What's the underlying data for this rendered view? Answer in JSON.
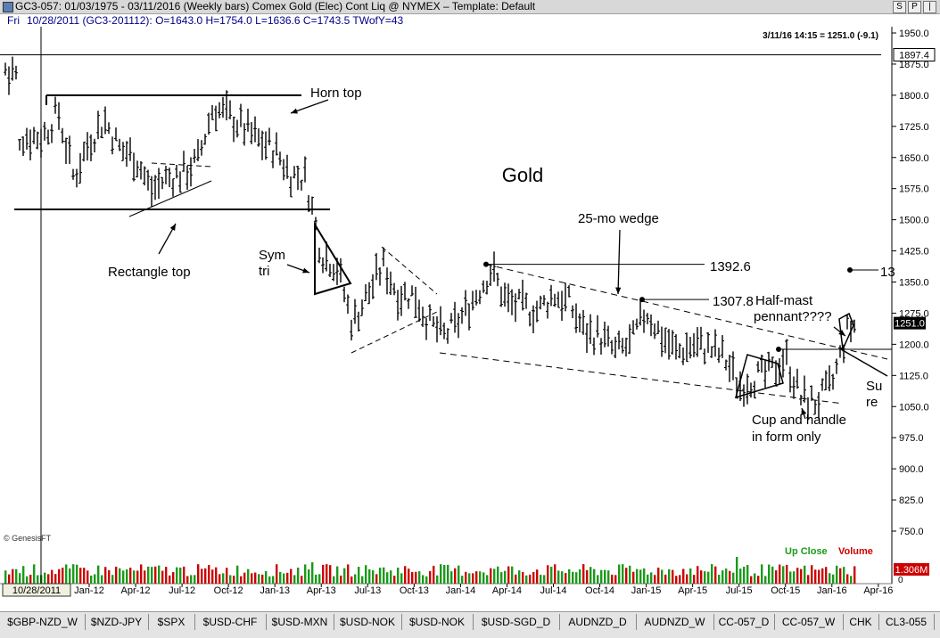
{
  "window": {
    "title": "GC3-057:  01/03/1975 - 03/11/2016  (Weekly bars)   Comex Gold (Elec) Cont Liq @ NYMEX  –  Template: Default",
    "buttons": [
      "S",
      "P",
      "|"
    ]
  },
  "info": {
    "day": "Fri",
    "quote": "10/28/2011 (GC3-201112):  O=1643.0  H=1754.0  L=1636.6  C=1743.5  TWofY=43"
  },
  "header_stamp": "3/11/16 14:15 = 1251.0 (-9.1)",
  "copyright": "© GenesisFT",
  "legend": {
    "up_close": "Up Close",
    "volume": "Volume"
  },
  "crosshair_date": "10/28/2011",
  "price_tags": {
    "cursor": "1897.4",
    "last": "1251.0",
    "volume": "1.306M",
    "volume_zero": "0"
  },
  "colors": {
    "up_close": "#1a9a1a",
    "volume": "#cc0000",
    "bars": "#000000",
    "price_tag_bg": "#cc0000"
  },
  "annotations": {
    "gold": "Gold",
    "horn_top": "Horn top",
    "rectangle_top": "Rectangle top",
    "sym_tri_1": "Sym",
    "sym_tri_2": "tri",
    "wedge": "25-mo wedge",
    "level_1392": "1392.6",
    "level_1307": "1307.8",
    "half_mast_1": "Half-mast",
    "half_mast_2": "pennant????",
    "cup_1": "Cup and handle",
    "cup_2": "in form only",
    "cut_13": "13",
    "cut_su": "Su",
    "cut_re": "re"
  },
  "tabs": [
    "$GBP-NZD_W",
    "$NZD-JPY",
    "$SPX",
    "$USD-CHF",
    "$USD-MXN",
    "$USD-NOK",
    "$USD-NOK",
    "$USD-SGD_D",
    "AUDNZD_D",
    "AUDNZD_W",
    "CC-057_D",
    "CC-057_W",
    "CHK",
    "CL3-055"
  ],
  "chart_data": {
    "type": "bar",
    "title": "Gold",
    "ylabel": "",
    "xlabel": "",
    "ylim": [
      700,
      1960
    ],
    "y_ticks": [
      1950,
      1875,
      1800,
      1725,
      1650,
      1575,
      1500,
      1425,
      1350,
      1275,
      1200,
      1125,
      1050,
      975,
      900,
      825,
      750
    ],
    "x_ticks": [
      "Jan-12",
      "Apr-12",
      "Jul-12",
      "Oct-12",
      "Jan-13",
      "Apr-13",
      "Jul-13",
      "Oct-13",
      "Jan-14",
      "Apr-14",
      "Jul-14",
      "Oct-14",
      "Jan-15",
      "Apr-15",
      "Jul-15",
      "Oct-15",
      "Jan-16",
      "Apr-16"
    ],
    "series_anchors": [
      [
        "2011-10",
        1700
      ],
      [
        "2011-11",
        1760
      ],
      [
        "2011-12",
        1600
      ],
      [
        "2012-01",
        1690
      ],
      [
        "2012-02",
        1740
      ],
      [
        "2012-03",
        1670
      ],
      [
        "2012-04",
        1650
      ],
      [
        "2012-05",
        1570
      ],
      [
        "2012-06",
        1600
      ],
      [
        "2012-07",
        1610
      ],
      [
        "2012-08",
        1640
      ],
      [
        "2012-09",
        1770
      ],
      [
        "2012-10",
        1750
      ],
      [
        "2012-11",
        1720
      ],
      [
        "2012-12",
        1690
      ],
      [
        "2013-01",
        1670
      ],
      [
        "2013-02",
        1610
      ],
      [
        "2013-03",
        1600
      ],
      [
        "2013-04",
        1420
      ],
      [
        "2013-05",
        1390
      ],
      [
        "2013-06",
        1250
      ],
      [
        "2013-07",
        1320
      ],
      [
        "2013-08",
        1390
      ],
      [
        "2013-09",
        1320
      ],
      [
        "2013-10",
        1320
      ],
      [
        "2013-11",
        1250
      ],
      [
        "2013-12",
        1220
      ],
      [
        "2014-01",
        1260
      ],
      [
        "2014-02",
        1320
      ],
      [
        "2014-03",
        1380
      ],
      [
        "2014-04",
        1300
      ],
      [
        "2014-05",
        1290
      ],
      [
        "2014-06",
        1280
      ],
      [
        "2014-07",
        1320
      ],
      [
        "2014-08",
        1300
      ],
      [
        "2014-09",
        1230
      ],
      [
        "2014-10",
        1220
      ],
      [
        "2014-11",
        1180
      ],
      [
        "2014-12",
        1200
      ],
      [
        "2015-01",
        1280
      ],
      [
        "2015-02",
        1220
      ],
      [
        "2015-03",
        1180
      ],
      [
        "2015-04",
        1200
      ],
      [
        "2015-05",
        1190
      ],
      [
        "2015-06",
        1170
      ],
      [
        "2015-07",
        1100
      ],
      [
        "2015-08",
        1120
      ],
      [
        "2015-09",
        1130
      ],
      [
        "2015-10",
        1170
      ],
      [
        "2015-11",
        1070
      ],
      [
        "2015-12",
        1060
      ],
      [
        "2016-01",
        1100
      ],
      [
        "2016-02",
        1230
      ],
      [
        "2016-03",
        1260
      ]
    ],
    "levels": {
      "rectangle_top_upper": 1800,
      "rectangle_base": 1525,
      "cursor_line": 1897.4,
      "wedge_high": 1392.6,
      "wedge_lower_high": 1307.8,
      "last": 1251.0
    }
  }
}
